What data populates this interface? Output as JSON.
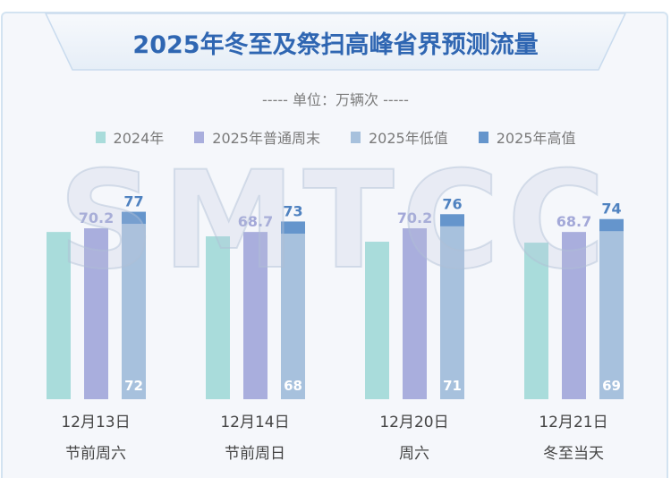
{
  "title": "2025年冬至及祭扫高峰省界预测流量",
  "unit_label": "----- 单位：万辆次 -----",
  "watermark": "SMTCC",
  "chart_data": {
    "type": "bar",
    "title": "2025年冬至及祭扫高峰省界预测流量",
    "unit": "万辆次",
    "categories": [
      "12月13日",
      "12月14日",
      "12月20日",
      "12月21日"
    ],
    "category_sublabels": [
      "节前周六",
      "节前周日",
      "周六",
      "冬至当天"
    ],
    "legend_position": "top",
    "grid": false,
    "ylim": [
      0,
      80
    ],
    "series": [
      {
        "name": "2024年",
        "values": [
          68.7,
          66.9,
          64.7,
          64.3
        ],
        "color": "#a9dcdb",
        "labeled": false
      },
      {
        "name": "2025年普通周末",
        "values": [
          70.2,
          68.7,
          70.2,
          68.7
        ],
        "color": "#a9aedd",
        "labeled": true
      },
      {
        "name": "2025年低值",
        "values": [
          72,
          68,
          71,
          69
        ],
        "color": "#a7c1dd",
        "labeled": true
      },
      {
        "name": "2025年高值",
        "values": [
          77,
          73,
          76,
          74
        ],
        "color": "#6595cc",
        "labeled": true,
        "stacked_over": "2025年低值"
      }
    ]
  }
}
